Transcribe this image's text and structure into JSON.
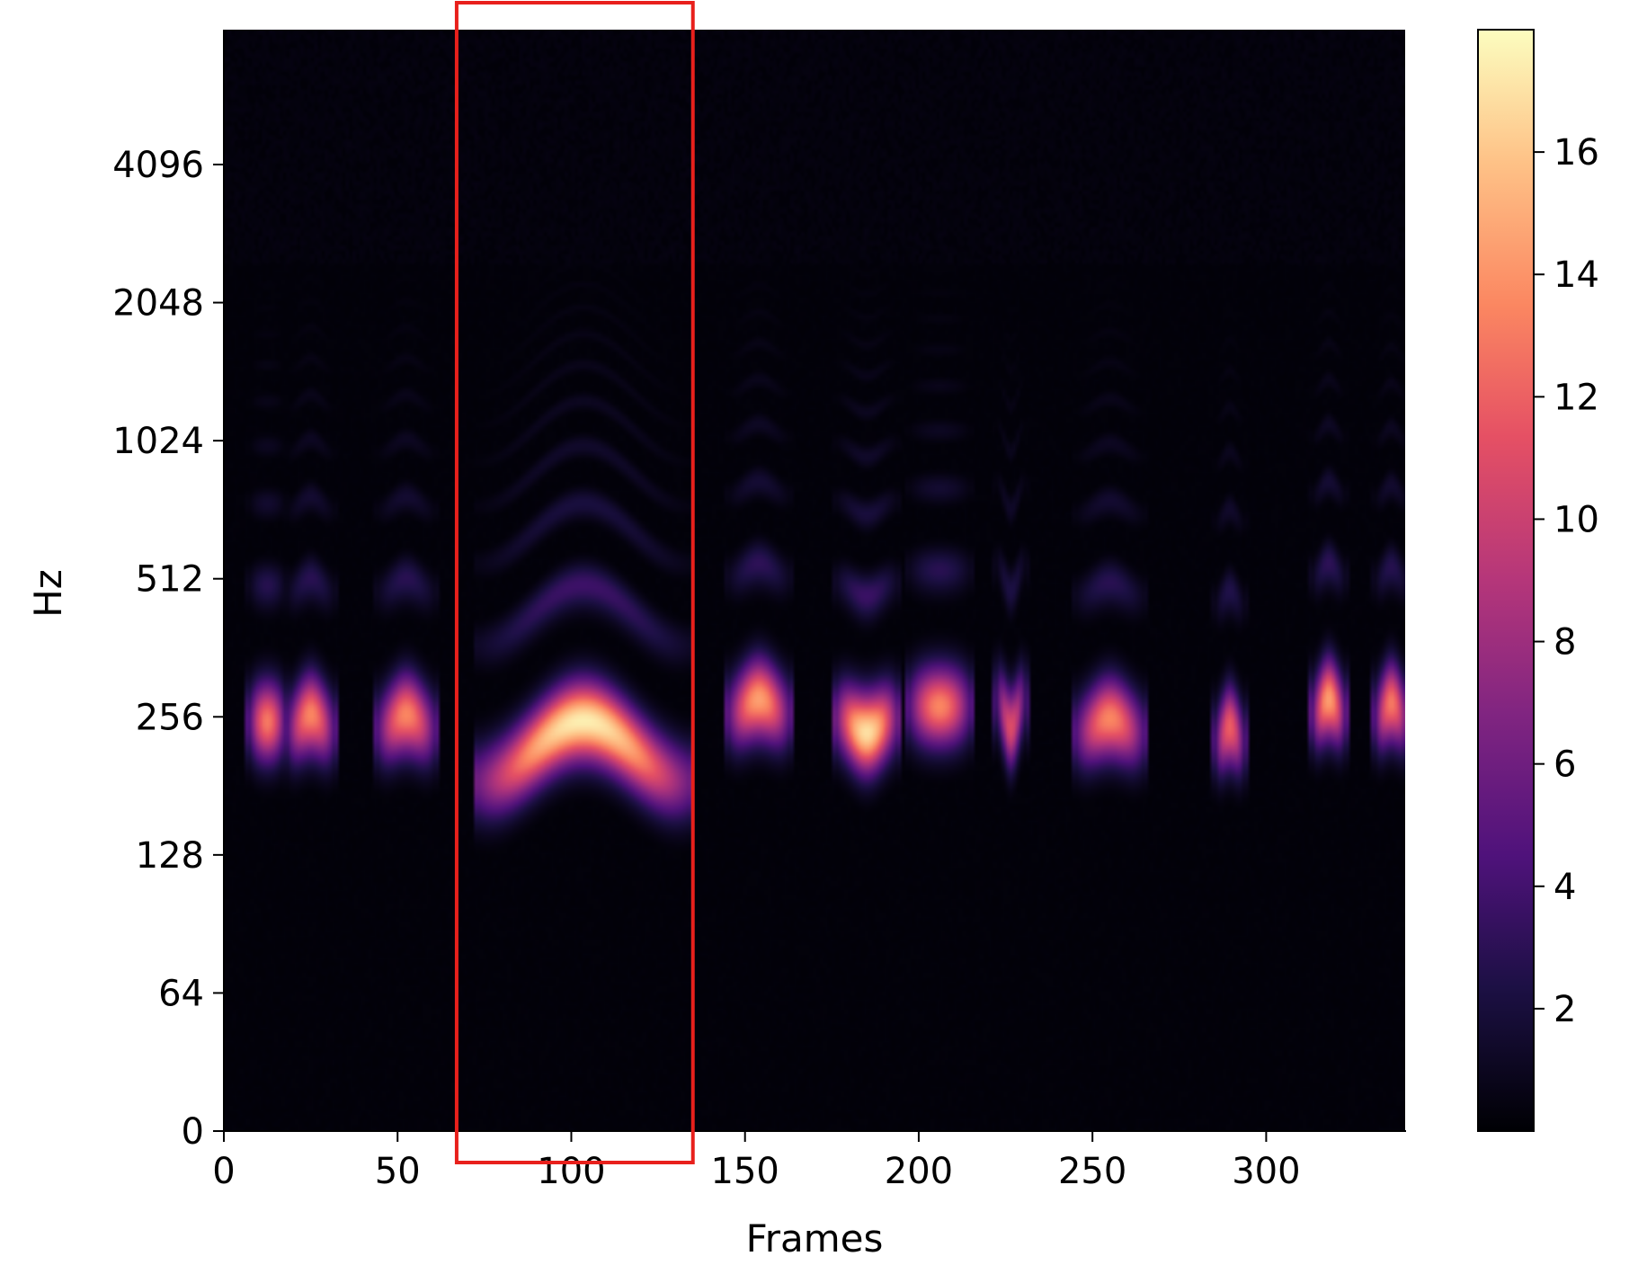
{
  "chart_data": {
    "type": "heatmap",
    "title": "",
    "xlabel": "Frames",
    "ylabel": "Hz",
    "xlim": [
      0,
      340
    ],
    "x_ticks": [
      0,
      50,
      100,
      150,
      200,
      250,
      300
    ],
    "x_tick_labels": [
      "0",
      "50",
      "100",
      "150",
      "200",
      "250",
      "300"
    ],
    "y_scale": "log2 (mel)",
    "y_ticks": [
      0,
      64,
      128,
      256,
      512,
      1024,
      2048,
      4096
    ],
    "y_tick_labels": [
      "0",
      "64",
      "128",
      "256",
      "512",
      "1024",
      "2048",
      "4096"
    ],
    "colormap": "magma",
    "colorbar": {
      "range": [
        0,
        18
      ],
      "ticks": [
        2,
        4,
        6,
        8,
        10,
        12,
        14,
        16
      ],
      "tick_labels": [
        "2",
        "4",
        "6",
        "8",
        "10",
        "12",
        "14",
        "16"
      ]
    },
    "highlight_box": {
      "color": "#e8201c",
      "x_range_frames": [
        67,
        135
      ]
    },
    "segments": [
      {
        "x0": 7,
        "x1": 17,
        "f0": 250,
        "peak": 13,
        "shift": 0.0
      },
      {
        "x0": 18,
        "x1": 31,
        "f0": 250,
        "peak": 13.5,
        "shift": 0.05
      },
      {
        "x0": 44,
        "x1": 60,
        "f0": 250,
        "peak": 13.5,
        "shift": 0.05
      },
      {
        "x0": 73,
        "x1": 133,
        "f0": 215,
        "peak": 17.5,
        "shift": 0.22
      },
      {
        "x0": 145,
        "x1": 162,
        "f0": 270,
        "peak": 14.5,
        "shift": 0.05
      },
      {
        "x0": 176,
        "x1": 193,
        "f0": 245,
        "peak": 17,
        "shift": -0.05
      },
      {
        "x0": 197,
        "x1": 214,
        "f0": 270,
        "peak": 13.5,
        "shift": 0.0
      },
      {
        "x0": 222,
        "x1": 230,
        "f0": 260,
        "peak": 11,
        "shift": -0.1
      },
      {
        "x0": 245,
        "x1": 264,
        "f0": 245,
        "peak": 13.5,
        "shift": 0.05
      },
      {
        "x0": 285,
        "x1": 293,
        "f0": 235,
        "peak": 12,
        "shift": 0.05
      },
      {
        "x0": 313,
        "x1": 322,
        "f0": 270,
        "peak": 14.5,
        "shift": 0.05
      },
      {
        "x0": 331,
        "x1": 340,
        "f0": 265,
        "peak": 13,
        "shift": 0.05
      }
    ]
  }
}
